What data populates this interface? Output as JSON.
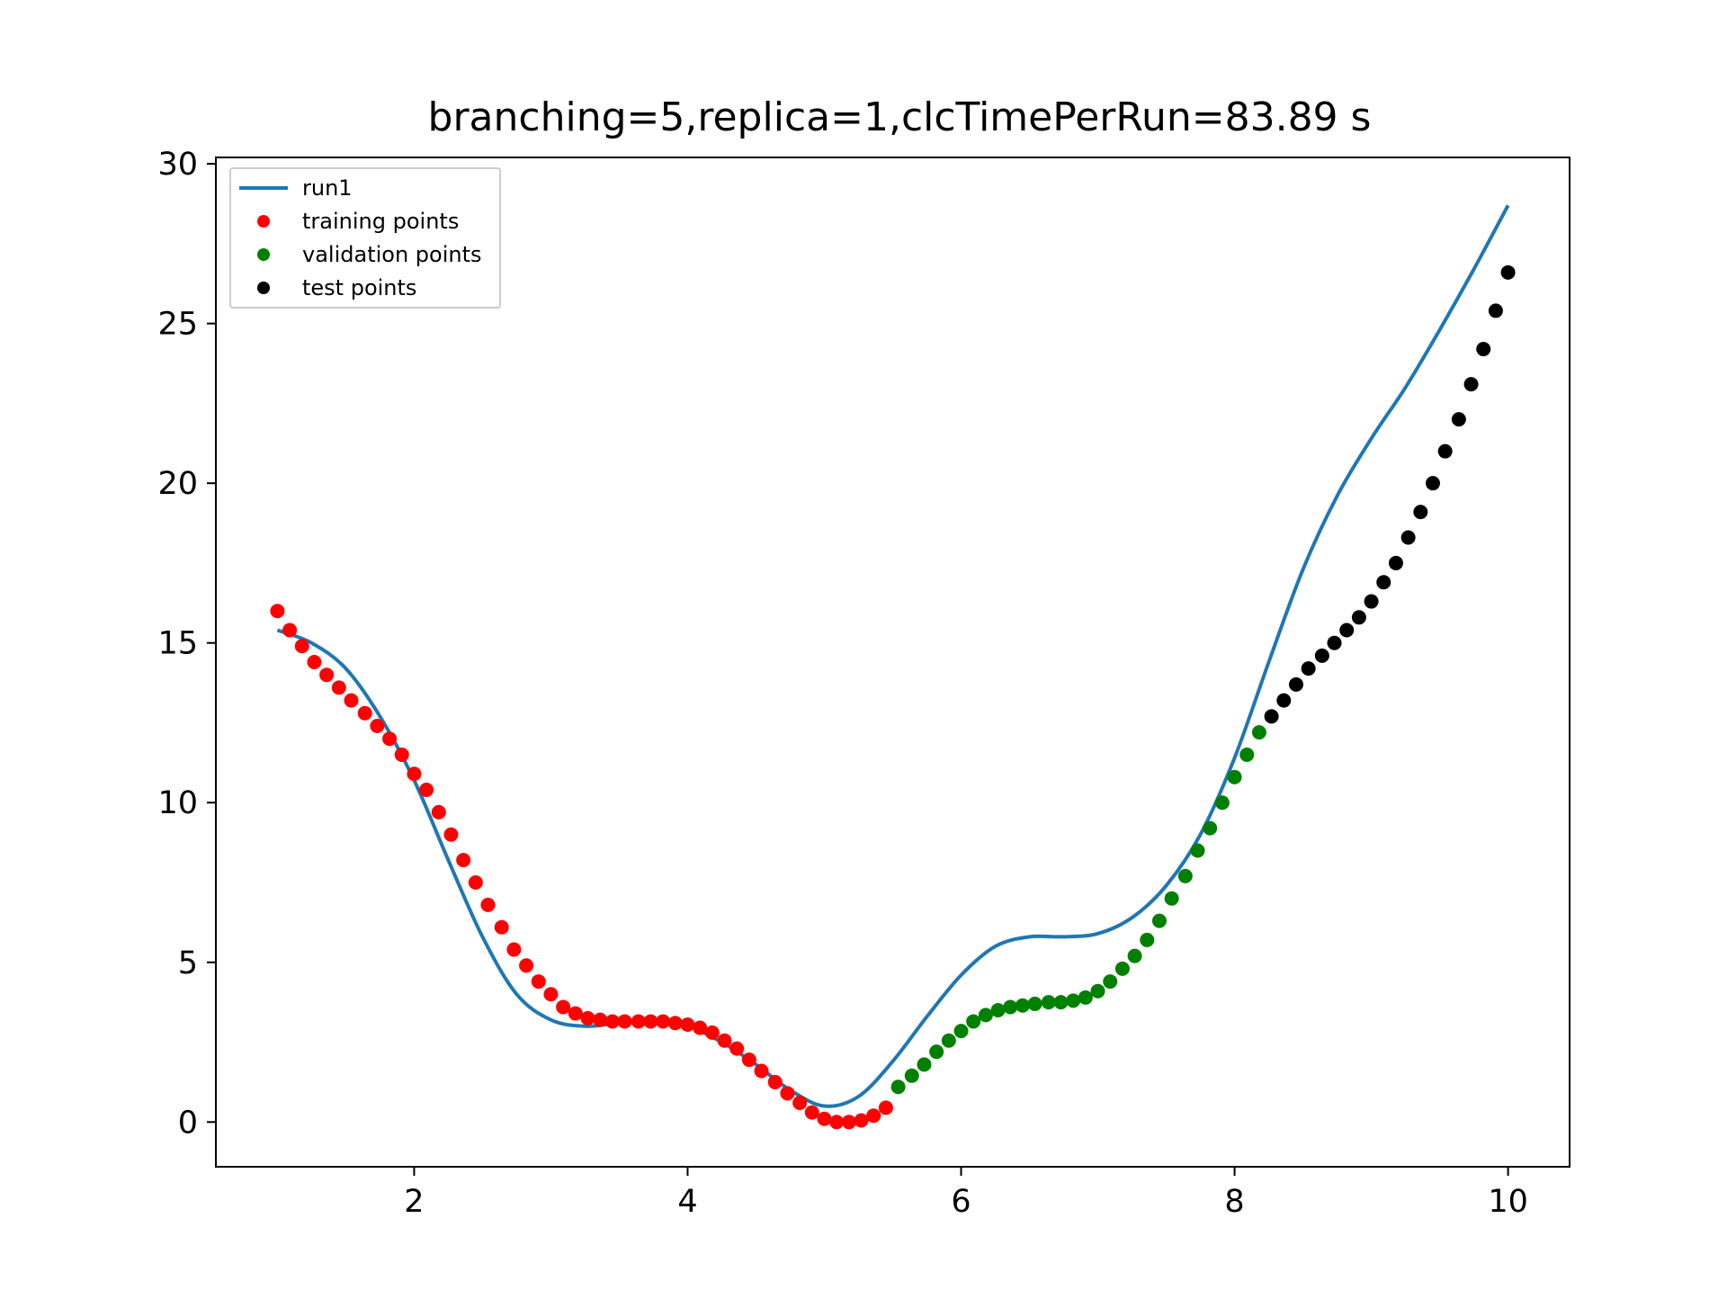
{
  "chart_data": {
    "type": "scatter",
    "title": "branching=5,replica=1,clcTimePerRun=83.89 s",
    "xlabel": "",
    "ylabel": "",
    "xlim": [
      0.55,
      10.45
    ],
    "ylim": [
      -1.4,
      30.2
    ],
    "xticks": [
      2,
      4,
      6,
      8,
      10
    ],
    "yticks": [
      0,
      5,
      10,
      15,
      20,
      25,
      30
    ],
    "grid": false,
    "legend_position": "top-left",
    "series": [
      {
        "name": "run1",
        "kind": "line",
        "color": "#1f77b4",
        "x": [
          1.0,
          1.25,
          1.5,
          1.75,
          2.0,
          2.25,
          2.5,
          2.75,
          3.0,
          3.25,
          3.5,
          3.75,
          4.0,
          4.25,
          4.5,
          4.75,
          5.0,
          5.25,
          5.5,
          5.75,
          6.0,
          6.25,
          6.5,
          6.75,
          7.0,
          7.25,
          7.5,
          7.75,
          8.0,
          8.25,
          8.5,
          8.75,
          9.0,
          9.25,
          9.5,
          9.75,
          10.0
        ],
        "y": [
          15.4,
          15.0,
          14.2,
          12.7,
          10.7,
          8.2,
          5.8,
          4.0,
          3.2,
          3.0,
          3.1,
          3.15,
          3.0,
          2.5,
          1.8,
          1.0,
          0.5,
          0.8,
          1.9,
          3.3,
          4.6,
          5.5,
          5.8,
          5.8,
          5.9,
          6.4,
          7.4,
          9.0,
          11.4,
          14.4,
          17.3,
          19.6,
          21.4,
          23.0,
          24.8,
          26.7,
          28.7
        ]
      },
      {
        "name": "training points",
        "kind": "points",
        "color": "#ff0000",
        "x": [
          1.0,
          1.09,
          1.18,
          1.27,
          1.36,
          1.45,
          1.54,
          1.64,
          1.73,
          1.82,
          1.91,
          2.0,
          2.09,
          2.18,
          2.27,
          2.36,
          2.45,
          2.54,
          2.64,
          2.73,
          2.82,
          2.91,
          3.0,
          3.09,
          3.18,
          3.27,
          3.36,
          3.45,
          3.54,
          3.64,
          3.73,
          3.82,
          3.91,
          4.0,
          4.09,
          4.18,
          4.27,
          4.36,
          4.45,
          4.54,
          4.64,
          4.73,
          4.82,
          4.91,
          5.0,
          5.09,
          5.18,
          5.27,
          5.36,
          5.45
        ],
        "y": [
          16.0,
          15.4,
          14.9,
          14.4,
          14.0,
          13.6,
          13.2,
          12.8,
          12.4,
          12.0,
          11.5,
          10.9,
          10.4,
          9.7,
          9.0,
          8.2,
          7.5,
          6.8,
          6.1,
          5.4,
          4.9,
          4.4,
          4.0,
          3.6,
          3.4,
          3.25,
          3.2,
          3.15,
          3.15,
          3.15,
          3.15,
          3.15,
          3.1,
          3.05,
          2.95,
          2.8,
          2.55,
          2.3,
          1.95,
          1.6,
          1.25,
          0.9,
          0.6,
          0.3,
          0.1,
          0.0,
          0.0,
          0.05,
          0.2,
          0.45
        ]
      },
      {
        "name": "validation points",
        "kind": "points",
        "color": "#008000",
        "x": [
          5.54,
          5.64,
          5.73,
          5.82,
          5.91,
          6.0,
          6.09,
          6.18,
          6.27,
          6.36,
          6.45,
          6.54,
          6.64,
          6.73,
          6.82,
          6.91,
          7.0,
          7.09,
          7.18,
          7.27,
          7.36,
          7.45,
          7.54,
          7.64,
          7.73,
          7.82,
          7.91,
          8.0,
          8.09,
          8.18
        ],
        "y": [
          1.1,
          1.45,
          1.8,
          2.2,
          2.55,
          2.85,
          3.15,
          3.35,
          3.5,
          3.6,
          3.65,
          3.7,
          3.75,
          3.75,
          3.8,
          3.9,
          4.1,
          4.4,
          4.8,
          5.2,
          5.7,
          6.3,
          7.0,
          7.7,
          8.5,
          9.2,
          10.0,
          10.8,
          11.5,
          12.2
        ]
      },
      {
        "name": "test points",
        "kind": "points",
        "color": "#000000",
        "x": [
          8.27,
          8.36,
          8.45,
          8.54,
          8.64,
          8.73,
          8.82,
          8.91,
          9.0,
          9.09,
          9.18,
          9.27,
          9.36,
          9.45,
          9.54,
          9.64,
          9.73,
          9.82,
          9.91,
          10.0
        ],
        "y": [
          12.7,
          13.2,
          13.7,
          14.2,
          14.6,
          15.0,
          15.4,
          15.8,
          16.3,
          16.9,
          17.5,
          18.3,
          19.1,
          20.0,
          21.0,
          22.0,
          23.1,
          24.2,
          25.4,
          26.6
        ]
      }
    ]
  }
}
